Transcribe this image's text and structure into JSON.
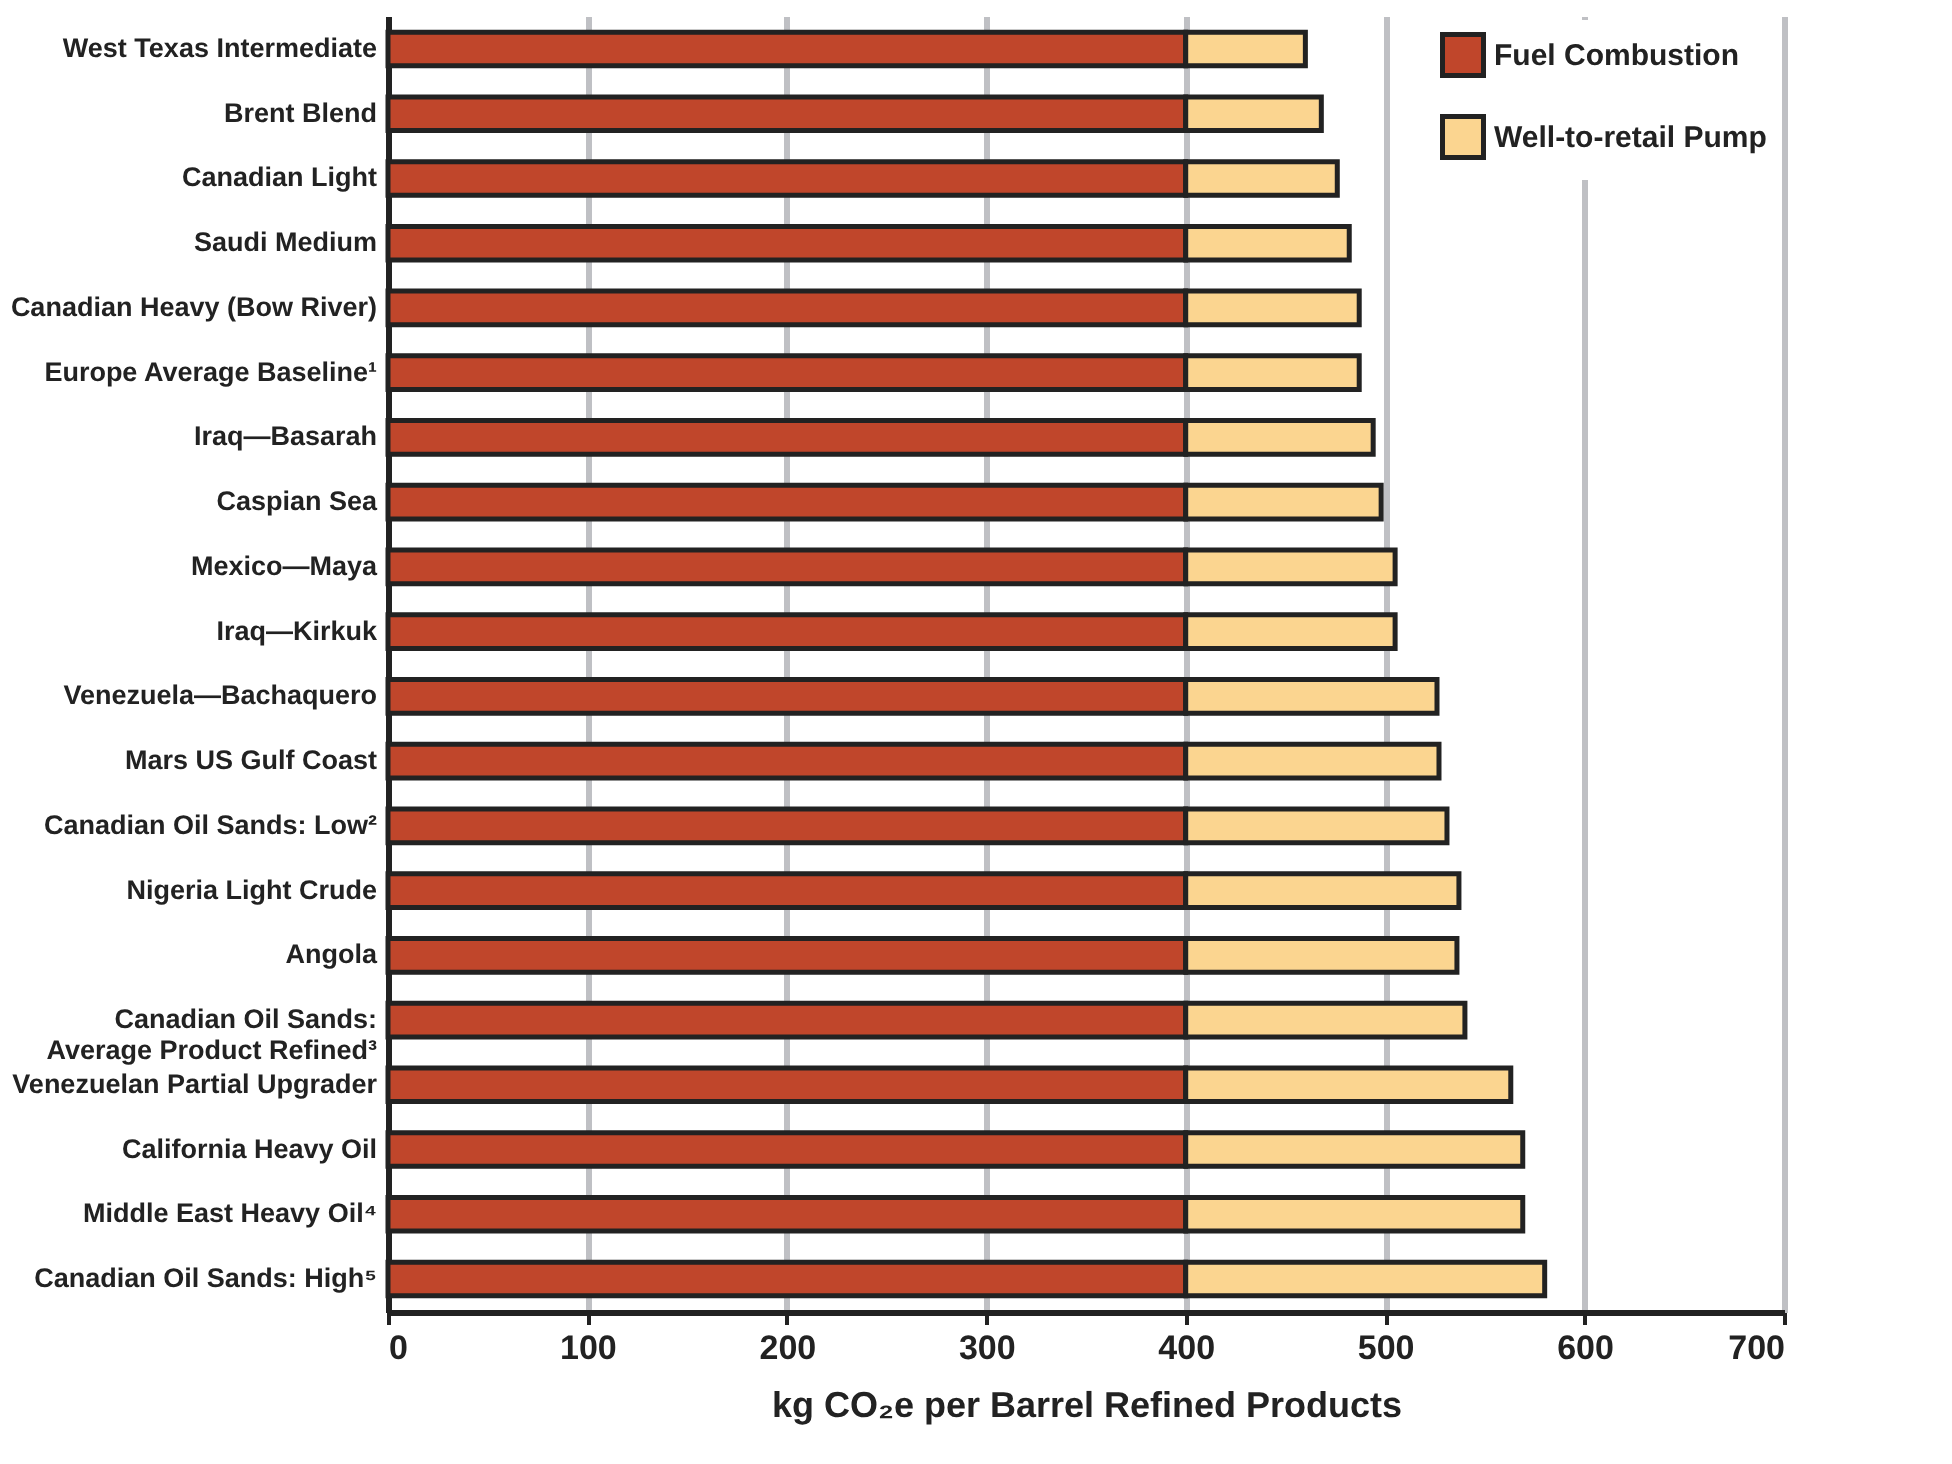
{
  "chart_data": {
    "type": "bar",
    "orientation": "horizontal",
    "stacked": true,
    "xlabel": "kg CO₂e per Barrel Refined Products",
    "categories": [
      "West Texas Intermediate",
      "Brent Blend",
      "Canadian Light",
      "Saudi Medium",
      "Canadian Heavy (Bow River)",
      "Europe Average Baseline¹",
      "Iraq—Basarah",
      "Caspian Sea",
      "Mexico—Maya",
      "Iraq—Kirkuk",
      "Venezuela—Bachaquero",
      "Mars US Gulf Coast",
      "Canadian Oil Sands: Low²",
      "Nigeria Light Crude",
      "Angola",
      "Canadian Oil Sands:\nAverage Product Refined³",
      "Venezuelan Partial Upgrader",
      "California Heavy Oil",
      "Middle East Heavy Oil⁴",
      "Canadian Oil Sands: High⁵"
    ],
    "series": [
      {
        "name": "Fuel Combustion",
        "color": "#c0462b",
        "values": [
          400,
          400,
          400,
          400,
          400,
          400,
          400,
          400,
          400,
          400,
          400,
          400,
          400,
          400,
          400,
          400,
          400,
          400,
          400,
          400
        ]
      },
      {
        "name": "Well-to-retail Pump",
        "color": "#fbd590",
        "values": [
          60,
          68,
          76,
          82,
          87,
          87,
          94,
          98,
          105,
          105,
          126,
          127,
          131,
          137,
          136,
          140,
          163,
          169,
          169,
          180
        ]
      }
    ],
    "xlim": [
      0,
      700
    ],
    "xticks": [
      0,
      100,
      200,
      300,
      400,
      500,
      600,
      700
    ],
    "grid": "x",
    "legend": "top right"
  }
}
